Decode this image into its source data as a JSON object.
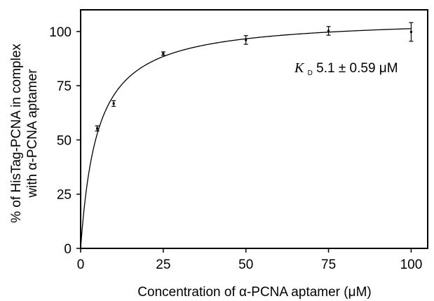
{
  "chart_data": {
    "type": "scatter",
    "xlabel": "Concentration of α-PCNA aptamer  (μM)",
    "ylabel_line1": "% of HisTag-PCNA in complex",
    "ylabel_line2": "with α-PCNA aptamer",
    "xlim": [
      0,
      105
    ],
    "ylim": [
      0,
      110
    ],
    "x_ticks": [
      0,
      25,
      50,
      75,
      100
    ],
    "y_ticks": [
      0,
      25,
      50,
      75,
      100
    ],
    "grid": false,
    "series": [
      {
        "x": [
          5,
          10,
          25,
          50,
          75,
          100
        ],
        "y": [
          55.3,
          66.8,
          89.8,
          96.1,
          100.3,
          99.8
        ],
        "error": [
          1.2,
          1.3,
          0.8,
          2.0,
          2.0,
          4.3
        ]
      }
    ],
    "fit": {
      "model": "hyperbolic",
      "bmax": 106.5,
      "kd": 5.1,
      "x_start": 0.1,
      "x_end": 100
    },
    "annotation": {
      "symbol": "K",
      "subscript": "D",
      "text": " 5.1 ± 0.59 μM"
    }
  }
}
